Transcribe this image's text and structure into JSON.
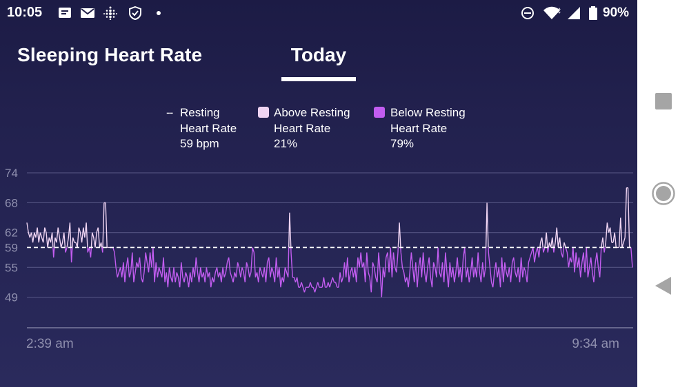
{
  "status_bar": {
    "time": "10:05",
    "battery": "90%",
    "left_icons": [
      "message-icon",
      "mail-icon",
      "fitbit-icon",
      "shield-check-icon",
      "dot-icon"
    ],
    "right_icons": [
      "do-not-disturb-icon",
      "wifi-icon",
      "signal-icon",
      "battery-icon"
    ]
  },
  "header": {
    "title": "Sleeping Heart Rate",
    "tab": "Today"
  },
  "legend": {
    "resting": {
      "marker": "--",
      "line1": "Resting",
      "line2": "Heart Rate",
      "value": "59 bpm"
    },
    "above": {
      "line1": "Above Resting",
      "line2": "Heart Rate",
      "value": "21%",
      "color": "#efd4f2"
    },
    "below": {
      "line1": "Below Resting",
      "line2": "Heart Rate",
      "value": "79%",
      "color": "#c25df0"
    }
  },
  "chart_data": {
    "type": "line",
    "title": "",
    "xlabel": "",
    "ylabel": "",
    "x_start": "2:39 am",
    "x_end": "9:34 am",
    "x_tick_labels": [
      "2:39 am",
      "9:34 am"
    ],
    "y_tick_labels": [
      "74",
      "68",
      "62",
      "59",
      "55",
      "49"
    ],
    "ylim": [
      43,
      74
    ],
    "resting_heart_rate": 59,
    "resting_line_style": "dashed",
    "above_color": "#efd4f2",
    "below_color": "#c25df0",
    "grid": true,
    "series": [
      {
        "values": [
          64,
          62,
          61,
          62,
          60,
          62,
          61,
          63,
          60,
          62,
          61,
          60,
          63,
          62,
          59,
          61,
          60,
          62,
          57,
          61,
          60,
          63,
          61,
          59,
          60,
          62,
          58,
          59,
          61,
          64,
          56,
          61,
          60,
          60,
          59,
          63,
          62,
          60,
          63,
          61,
          64,
          58,
          59,
          57,
          62,
          61,
          59,
          62,
          63,
          59,
          60,
          58,
          68,
          68,
          59,
          59,
          59,
          59,
          59,
          58,
          55,
          53,
          54,
          55,
          53,
          56,
          52,
          55,
          57,
          53,
          54,
          58,
          52,
          54,
          56,
          55,
          57,
          53,
          52,
          54,
          58,
          56,
          54,
          58,
          55,
          59,
          52,
          56,
          53,
          55,
          54,
          53,
          57,
          52,
          54,
          51,
          55,
          53,
          52,
          55,
          52,
          54,
          53,
          51,
          56,
          53,
          52,
          54,
          53,
          51,
          54,
          52,
          55,
          53,
          57,
          54,
          52,
          55,
          53,
          54,
          52,
          55,
          53,
          54,
          51,
          53,
          52,
          54,
          55,
          53,
          54,
          52,
          55,
          53,
          54,
          56,
          57,
          54,
          53,
          52,
          54,
          53,
          56,
          55,
          53,
          55,
          54,
          52,
          56,
          55,
          53,
          54,
          59,
          58,
          53,
          54,
          52,
          55,
          54,
          53,
          55,
          52,
          56,
          57,
          53,
          55,
          54,
          52,
          57,
          53,
          55,
          51,
          53,
          52,
          55,
          54,
          53,
          66,
          58,
          53,
          53,
          52,
          53,
          51,
          51,
          52,
          51,
          50,
          51,
          51,
          51,
          52,
          51,
          51,
          50,
          51,
          52,
          51,
          51,
          51,
          53,
          51,
          51,
          52,
          51,
          52,
          53,
          52,
          52,
          51,
          51,
          54,
          52,
          53,
          56,
          53,
          57,
          52,
          54,
          55,
          53,
          55,
          52,
          57,
          55,
          58,
          55,
          56,
          52,
          58,
          54,
          53,
          50,
          56,
          55,
          53,
          52,
          58,
          54,
          49,
          55,
          53,
          57,
          58,
          54,
          59,
          53,
          58,
          55,
          54,
          58,
          64,
          58,
          55,
          54,
          52,
          53,
          51,
          54,
          58,
          55,
          52,
          56,
          51,
          55,
          57,
          53,
          58,
          54,
          52,
          55,
          57,
          53,
          51,
          56,
          55,
          53,
          59,
          54,
          53,
          56,
          52,
          58,
          54,
          51,
          56,
          53,
          55,
          52,
          54,
          57,
          53,
          55,
          52,
          57,
          59,
          53,
          55,
          52,
          54,
          57,
          53,
          55,
          53,
          58,
          54,
          52,
          56,
          53,
          55,
          68,
          58,
          55,
          52,
          51,
          54,
          56,
          53,
          55,
          51,
          57,
          52,
          56,
          54,
          53,
          55,
          52,
          56,
          57,
          54,
          53,
          55,
          52,
          57,
          53,
          55,
          54,
          52,
          56,
          57,
          58,
          59,
          56,
          58,
          59,
          57,
          60,
          61,
          58,
          59,
          62,
          58,
          60,
          59,
          61,
          58,
          60,
          63,
          59,
          61,
          58,
          57,
          60,
          59,
          58,
          55,
          57,
          56,
          59,
          54,
          58,
          55,
          57,
          53,
          56,
          58,
          54,
          59,
          53,
          55,
          57,
          54,
          52,
          56,
          58,
          55,
          53,
          59,
          61,
          58,
          60,
          64,
          62,
          63,
          60,
          60,
          62,
          59,
          59,
          59,
          65,
          59,
          60,
          61,
          71,
          71,
          59,
          59,
          55
        ]
      }
    ]
  },
  "nav_bar": {
    "icons": [
      "recents-square-icon",
      "home-circle-icon",
      "back-triangle-icon"
    ]
  }
}
